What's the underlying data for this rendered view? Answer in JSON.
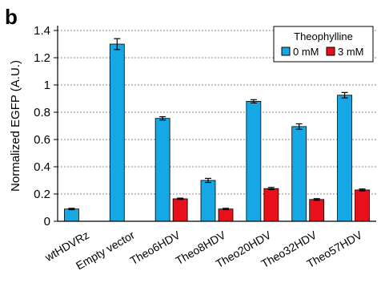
{
  "panel_letter": "b",
  "chart_data": {
    "type": "bar",
    "categories": [
      "wtHDVRz",
      "Empty vector",
      "Theo6HDV",
      "Theo8HDV",
      "Theo20HDV",
      "Theo32HDV",
      "Theo57HDV"
    ],
    "ylabel": "Normalized EGFP (A.U.)",
    "xlabel": "",
    "ylim": [
      0,
      1.4
    ],
    "yticks": [
      "0",
      "0.2",
      "0.4",
      "0.6",
      "0.8",
      "1",
      "1.2",
      "1.4"
    ],
    "grid": "horizontal dashed",
    "legend": {
      "title": "Theophylline",
      "placement": "top-right"
    },
    "series": [
      {
        "name": "0 mM",
        "color": "#16a7e5",
        "values": [
          0.09,
          1.3,
          0.755,
          0.3,
          0.88,
          0.695,
          0.925
        ],
        "errors": [
          0.005,
          0.04,
          0.012,
          0.015,
          0.012,
          0.02,
          0.02
        ]
      },
      {
        "name": "3 mM",
        "color": "#e8101a",
        "values": [
          null,
          null,
          0.165,
          0.09,
          0.24,
          0.16,
          0.23
        ],
        "errors": [
          null,
          null,
          0.005,
          0.005,
          0.008,
          0.006,
          0.007
        ]
      }
    ]
  }
}
